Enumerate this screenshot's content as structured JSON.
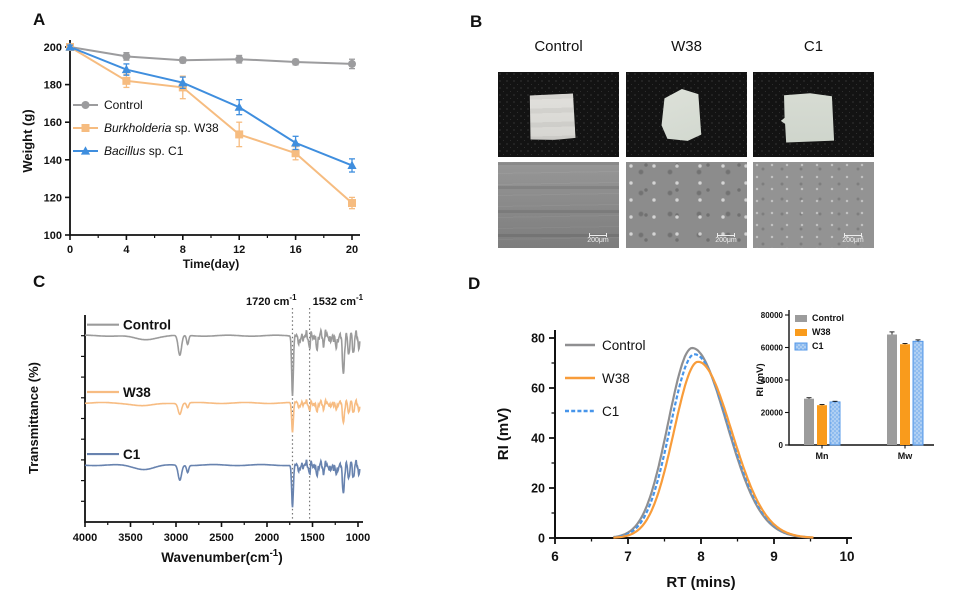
{
  "colors": {
    "axis": "#111111",
    "panel_a_gray": "#9C9C9E",
    "panel_a_orange": "#F6BC80",
    "panel_a_blue": "#3F8EDE",
    "panel_c_gray": "#9B9B9B",
    "panel_c_orange": "#F7BC82",
    "panel_c_blue": "#6883AF",
    "panel_d_gray": "#8F8F91",
    "panel_d_orange": "#F89C3A",
    "panel_d_blue": "#4795EA",
    "inset_c1_fill": "#8FBCEF",
    "inset_c1_border": "#5598E8",
    "inset_w38": "#F99B1C",
    "inset_gray": "#9C9C9C"
  },
  "panel_b": {
    "label": "B",
    "columns": [
      {
        "name": "Control"
      },
      {
        "name": "W38"
      },
      {
        "name": "C1"
      }
    ],
    "scale_bar_label": "200μm"
  },
  "chart_data": [
    {
      "panel": "A",
      "type": "line",
      "xlabel": "Time(day)",
      "ylabel": "Weight (g)",
      "x": [
        0,
        4,
        8,
        12,
        16,
        20
      ],
      "xticks": [
        0,
        4,
        8,
        12,
        16,
        20
      ],
      "xminors": [
        2,
        6,
        10,
        14,
        18
      ],
      "ylim": [
        100,
        200
      ],
      "yticks": [
        100,
        120,
        140,
        160,
        180,
        200
      ],
      "legend_position": "inside-left",
      "series": [
        {
          "name": "Control",
          "italic_part": "",
          "marker": "circle",
          "color": "#9C9C9E",
          "values": [
            200,
            195,
            193,
            193.5,
            192,
            191
          ],
          "errors": [
            1.5,
            2,
            1.5,
            2,
            1.5,
            2.5
          ]
        },
        {
          "name": " sp. W38",
          "italic_part": "Burkholderia",
          "marker": "square",
          "color": "#F6BC80",
          "values": [
            200,
            182,
            178.5,
            153.5,
            143.5,
            117
          ],
          "errors": [
            1,
            3.5,
            6,
            6.5,
            3.5,
            3
          ]
        },
        {
          "name": " sp. C1",
          "italic_part": "Bacillus",
          "marker": "triangle",
          "color": "#3F8EDE",
          "values": [
            200,
            188,
            181,
            168,
            149,
            137
          ],
          "errors": [
            1,
            3,
            3,
            4,
            3.5,
            3.5
          ]
        }
      ]
    },
    {
      "panel": "C",
      "type": "line-spectra",
      "xlabel_main": "Wavenumber(cm",
      "xlabel_sup": "-1",
      "xlabel_end": ")",
      "ylabel": "Transmittance (%)",
      "xlim": [
        4000,
        1000
      ],
      "xticks": [
        4000,
        3500,
        3000,
        2500,
        2000,
        1500,
        1000
      ],
      "xminors": [
        3750,
        3250,
        2750,
        2250,
        1750,
        1250
      ],
      "guides": [
        1720,
        1532
      ],
      "annotations": [
        {
          "main": "1720 cm",
          "sup": "-1",
          "wavenumber": 1720
        },
        {
          "main": "1532 cm",
          "sup": "-1",
          "wavenumber": 1532
        }
      ],
      "series": [
        {
          "name": "Control",
          "color": "#9B9B9B",
          "baseline_frac": 0.1,
          "noise": 6,
          "dips": [
            [
              3350,
              160,
              4
            ],
            [
              2958,
              26,
              20
            ],
            [
              2872,
              16,
              9
            ],
            [
              1720,
              13,
              60
            ],
            [
              1640,
              20,
              6
            ],
            [
              1532,
              11,
              12
            ],
            [
              1454,
              12,
              16
            ],
            [
              1380,
              10,
              9
            ],
            [
              1300,
              12,
              8
            ],
            [
              1240,
              13,
              14
            ],
            [
              1160,
              17,
              34
            ],
            [
              1100,
              12,
              18
            ],
            [
              1050,
              12,
              16
            ],
            [
              990,
              10,
              12
            ]
          ]
        },
        {
          "name": "W38",
          "color": "#F7BC82",
          "baseline_frac": 0.425,
          "noise": 3.5,
          "dips": [
            [
              3350,
              160,
              3
            ],
            [
              2958,
              26,
              11
            ],
            [
              2872,
              16,
              5
            ],
            [
              1720,
              13,
              30
            ],
            [
              1640,
              20,
              4
            ],
            [
              1532,
              11,
              7
            ],
            [
              1454,
              12,
              9
            ],
            [
              1380,
              10,
              5
            ],
            [
              1300,
              12,
              5
            ],
            [
              1240,
              13,
              8
            ],
            [
              1160,
              17,
              18
            ],
            [
              1100,
              12,
              10
            ],
            [
              1050,
              12,
              9
            ],
            [
              990,
              10,
              7
            ]
          ]
        },
        {
          "name": "C1",
          "color": "#6883AF",
          "baseline_frac": 0.725,
          "noise": 5,
          "dips": [
            [
              3350,
              160,
              4
            ],
            [
              2958,
              26,
              15
            ],
            [
              2872,
              16,
              7
            ],
            [
              1720,
              13,
              42
            ],
            [
              1640,
              20,
              5
            ],
            [
              1532,
              11,
              9
            ],
            [
              1454,
              12,
              12
            ],
            [
              1380,
              10,
              7
            ],
            [
              1300,
              12,
              6
            ],
            [
              1240,
              13,
              10
            ],
            [
              1160,
              17,
              25
            ],
            [
              1100,
              12,
              13
            ],
            [
              1050,
              12,
              12
            ],
            [
              990,
              10,
              9
            ]
          ]
        }
      ]
    },
    {
      "panel": "D",
      "type": "line",
      "xlabel": "RT (mins)",
      "ylabel": "RI (mV)",
      "xlim": [
        6,
        10
      ],
      "xticks": [
        6,
        7,
        8,
        9,
        10
      ],
      "xminors": [
        6.5,
        7.5,
        8.5,
        9.5
      ],
      "ylim": [
        0,
        80
      ],
      "yticks": [
        0,
        20,
        40,
        60,
        80
      ],
      "yminors": [
        10,
        30,
        50,
        70
      ],
      "x_drawn": [
        6.8,
        9.55
      ],
      "series": [
        {
          "name": "Control",
          "color": "#8F8F91",
          "dash": "",
          "peak_rt": 7.88,
          "peak_mv": 76,
          "sigma_left": 0.33,
          "sigma_right": 0.47
        },
        {
          "name": "W38",
          "color": "#F89C3A",
          "dash": "",
          "peak_rt": 7.96,
          "peak_mv": 70.5,
          "sigma_left": 0.33,
          "sigma_right": 0.46
        },
        {
          "name": "C1",
          "color": "#4795EA",
          "dash": "4 2.2",
          "peak_rt": 7.91,
          "peak_mv": 73.5,
          "sigma_left": 0.33,
          "sigma_right": 0.47
        }
      ]
    },
    {
      "panel": "D-inset",
      "type": "bar",
      "ylabel": "RI (mV)",
      "categories": [
        "Mn",
        "Mw"
      ],
      "ylim": [
        0,
        80000
      ],
      "yticks": [
        0,
        20000,
        40000,
        60000,
        80000
      ],
      "series": [
        {
          "name": "Control",
          "color": "#9C9C9C",
          "values": [
            28500,
            68000
          ],
          "errors": [
            600,
            1600
          ]
        },
        {
          "name": "W38",
          "color": "#F99B1C",
          "values": [
            24500,
            62000
          ],
          "errors": [
            400,
            500
          ]
        },
        {
          "name": "C1",
          "color": "#8FBCEF",
          "border": "#5598E8",
          "pattern": "dots",
          "values": [
            26500,
            63800
          ],
          "errors": [
            400,
            900
          ]
        }
      ]
    }
  ]
}
